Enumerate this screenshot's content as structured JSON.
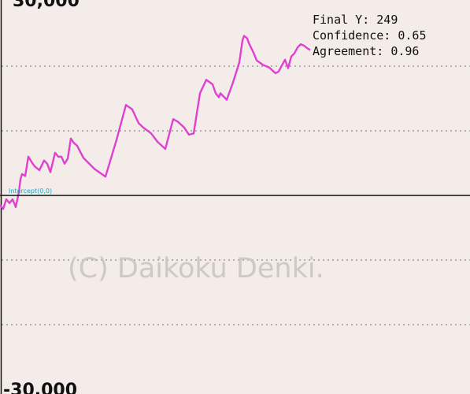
{
  "chart_data": {
    "type": "line",
    "y_ticks": [
      "30,000",
      "-30,000"
    ],
    "ylim": [
      -30000,
      30000
    ],
    "grid": true,
    "watermark": "(C) Daikoku Denki.",
    "overlay": {
      "final_y": "Final Y: 249",
      "confidence": "Confidence: 0.65",
      "agreement": "Agreement: 0.96"
    },
    "marker_label": "Intercept(0,0)",
    "series": [
      {
        "color": "#e040d0",
        "x": [
          0,
          0.0067,
          0.0134,
          0.0201,
          0.0268,
          0.0335,
          0.0402,
          0.0436,
          0.0469,
          0.0536,
          0.0603,
          0.067,
          0.0737,
          0.0838,
          0.0938,
          0.1005,
          0.1072,
          0.1173,
          0.124,
          0.1307,
          0.1374,
          0.1441,
          0.1508,
          0.1575,
          0.1642,
          0.1776,
          0.201,
          0.2245,
          0.2479,
          0.268,
          0.2814,
          0.2948,
          0.3049,
          0.3216,
          0.335,
          0.3517,
          0.3685,
          0.3786,
          0.3919,
          0.402,
          0.4121,
          0.4255,
          0.4389,
          0.4523,
          0.459,
          0.4657,
          0.469,
          0.4824,
          0.4958,
          0.5092,
          0.5159,
          0.5193,
          0.526,
          0.5293,
          0.5327,
          0.5394,
          0.5461,
          0.5595,
          0.5729,
          0.5863,
          0.593,
          0.6064,
          0.6131,
          0.6198,
          0.6265,
          0.6332,
          0.6399,
          0.6466,
          0.6533,
          0.66
        ],
        "y": [
          -1500,
          -2100,
          -600,
          -1200,
          -600,
          -1800,
          500,
          2500,
          3300,
          3000,
          6000,
          5200,
          4500,
          3900,
          5400,
          4900,
          3600,
          6600,
          6000,
          6000,
          4900,
          5700,
          8800,
          8100,
          7700,
          5800,
          4100,
          2900,
          8600,
          14000,
          13300,
          11200,
          10500,
          9600,
          8300,
          7200,
          11800,
          11400,
          10500,
          9400,
          9600,
          15800,
          17900,
          17200,
          15800,
          15200,
          15800,
          14800,
          17500,
          20600,
          24000,
          24700,
          24300,
          23600,
          23100,
          22100,
          20900,
          20200,
          19800,
          18900,
          19200,
          21000,
          19700,
          21500,
          22000,
          22900,
          23400,
          23200,
          22800,
          22500
        ]
      }
    ]
  }
}
